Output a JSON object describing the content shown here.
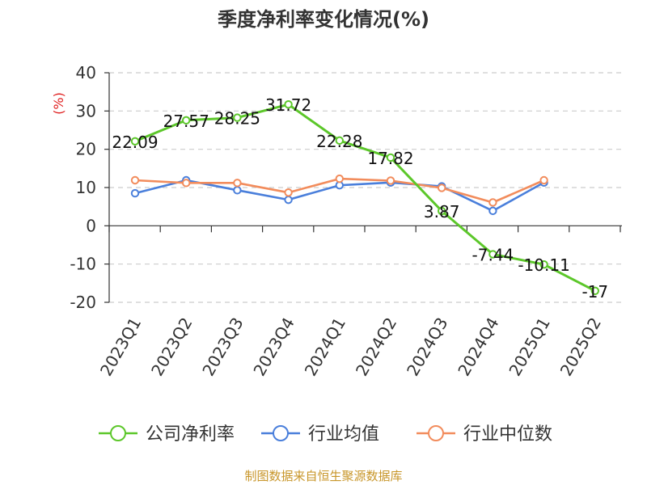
{
  "chart_data": {
    "type": "line",
    "title": "季度净利率变化情况(%)",
    "ylabel": "(%)",
    "xlabel": "",
    "categories": [
      "2023Q1",
      "2023Q2",
      "2023Q3",
      "2023Q4",
      "2024Q1",
      "2024Q2",
      "2024Q3",
      "2024Q4",
      "2025Q1",
      "2025Q2"
    ],
    "ylim": [
      -20,
      40
    ],
    "yticks": [
      40,
      30,
      20,
      10,
      0,
      -10,
      -20
    ],
    "grid": true,
    "legend_position": "bottom",
    "series": [
      {
        "name": "公司净利率",
        "color": "#5cc72a",
        "values": [
          22.09,
          27.57,
          28.25,
          31.72,
          22.28,
          17.82,
          3.87,
          -7.44,
          -10.11,
          -17
        ],
        "labels": [
          "22.09",
          "27.57",
          "28.25",
          "31.72",
          "22.28",
          "17.82",
          "3.87",
          "-7.44",
          "-10.11",
          "-17"
        ]
      },
      {
        "name": "行业均值",
        "color": "#4a7fdb",
        "values": [
          8.5,
          11.9,
          9.3,
          6.8,
          10.6,
          11.3,
          10.3,
          3.9,
          11.3,
          null
        ]
      },
      {
        "name": "行业中位数",
        "color": "#f28c5c",
        "values": [
          11.9,
          11.2,
          11.2,
          8.7,
          12.3,
          11.8,
          9.9,
          6.1,
          11.9,
          null
        ]
      }
    ]
  },
  "source": "制图数据来自恒生聚源数据库"
}
